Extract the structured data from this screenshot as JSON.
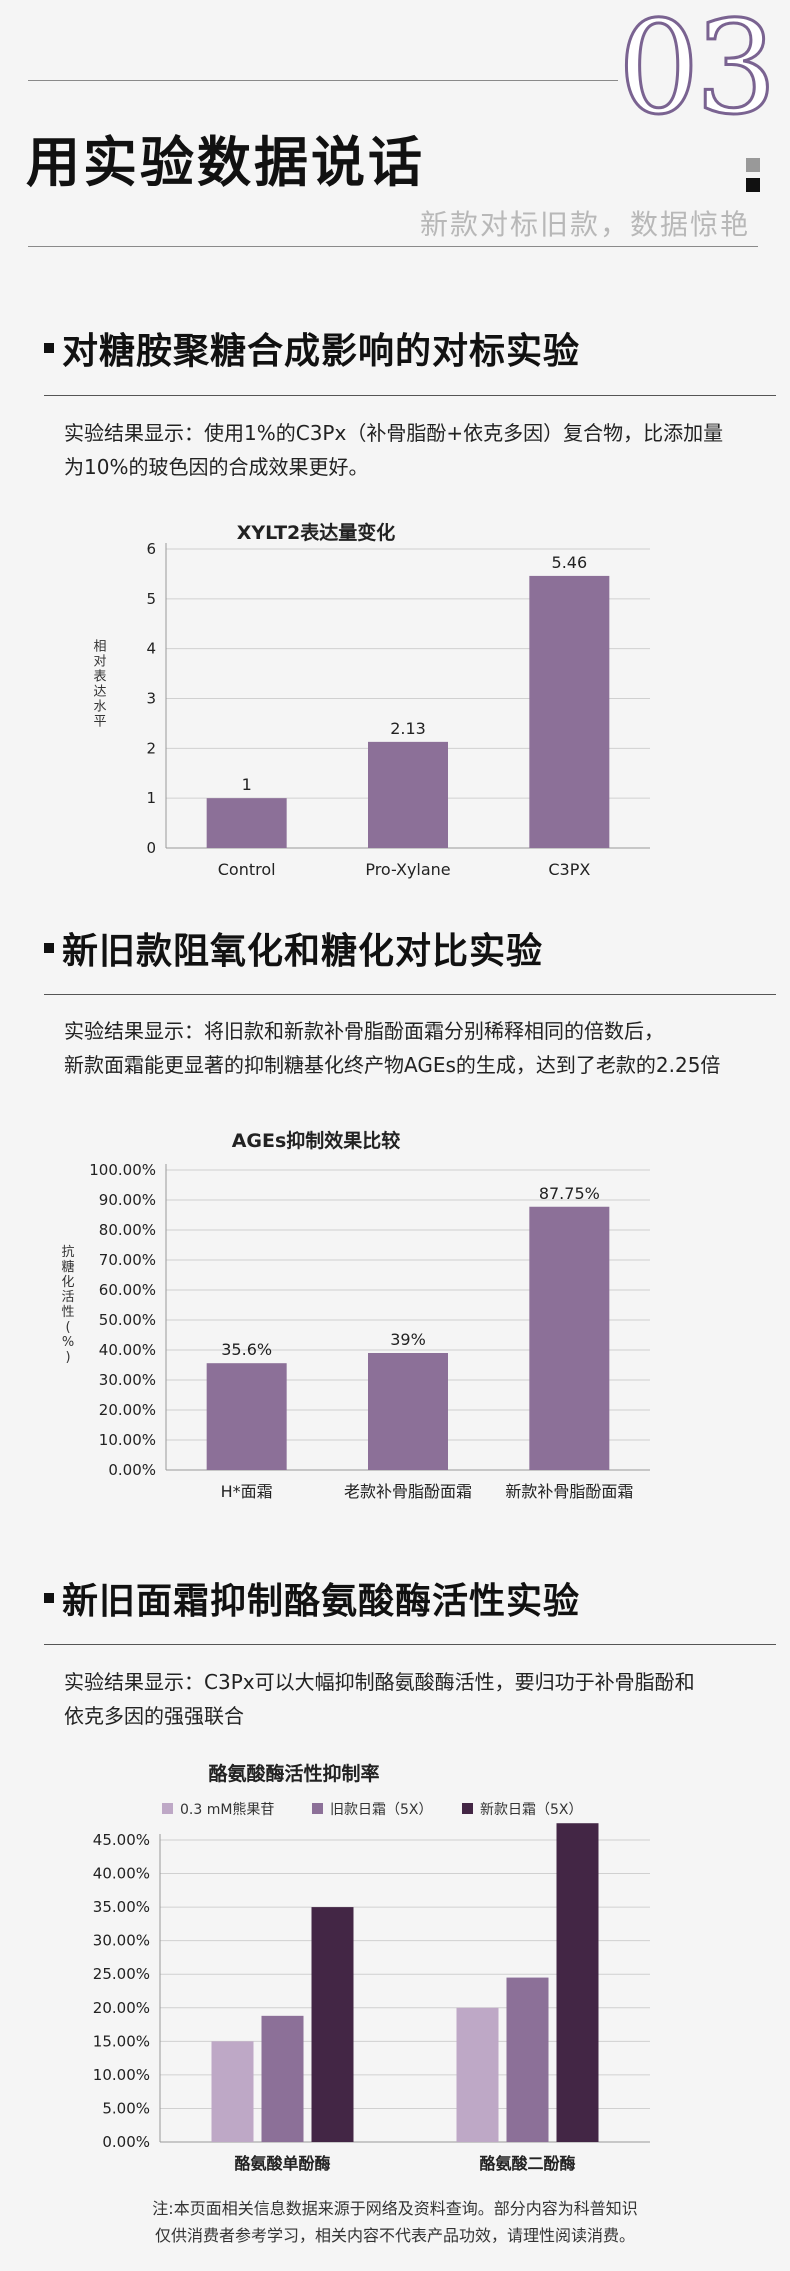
{
  "header": {
    "number": "03",
    "title": "用实验数据说话",
    "subtitle": "新款对标旧款，数据惊艳"
  },
  "sections": [
    {
      "title": "对糖胺聚糖合成影响的对标实验",
      "desc_lines": [
        "实验结果显示：使用1%的C3Px（补骨脂酚+依克多因）复合物，比添加量",
        "为10%的玻色因的合成效果更好。"
      ]
    },
    {
      "title": "新旧款阻氧化和糖化对比实验",
      "desc_lines": [
        "实验结果显示：将旧款和新款补骨脂酚面霜分别稀释相同的倍数后，",
        "新款面霜能更显著的抑制糖基化终产物AGEs的生成，达到了老款的2.25倍"
      ]
    },
    {
      "title": "新旧面霜抑制酪氨酸酶活性实验",
      "desc_lines": [
        "实验结果显示：C3Px可以大幅抑制酪氨酸酶活性，要归功于补骨脂酚和",
        "依克多因的强强联合"
      ]
    }
  ],
  "chart_data": [
    {
      "type": "bar",
      "title": "XYLT2表达量变化",
      "ylabel": "相对表达水平",
      "categories": [
        "Control",
        "Pro-Xylane",
        "C3PX"
      ],
      "values": [
        1,
        2.13,
        5.46
      ],
      "value_labels": [
        "1",
        "2.13",
        "5.46"
      ],
      "ylim": [
        0,
        6
      ],
      "yticks": [
        "0",
        "1",
        "2",
        "3",
        "4",
        "5",
        "6"
      ],
      "grid": true,
      "color": "#8c7098"
    },
    {
      "type": "bar",
      "title": "AGEs抑制效果比较",
      "ylabel": "抗糖化活性(%)",
      "categories": [
        "H*面霜",
        "老款补骨脂酚面霜",
        "新款补骨脂酚面霜"
      ],
      "values": [
        35.6,
        39,
        87.75
      ],
      "value_labels": [
        "35.6%",
        "39%",
        "87.75%"
      ],
      "ylim": [
        0,
        100
      ],
      "yticks": [
        "0.00%",
        "10.00%",
        "20.00%",
        "30.00%",
        "40.00%",
        "50.00%",
        "60.00%",
        "70.00%",
        "80.00%",
        "90.00%",
        "100.00%"
      ],
      "grid": true,
      "color": "#8c7098"
    },
    {
      "type": "bar",
      "title": "酪氨酸酶活性抑制率",
      "categories": [
        "酪氨酸单酚酶",
        "酪氨酸二酚酶"
      ],
      "series": [
        {
          "name": "0.3 mM熊果苷",
          "values": [
            15,
            20
          ],
          "color": "#bea8c6"
        },
        {
          "name": "旧款日霜（5X）",
          "values": [
            18.8,
            24.5
          ],
          "color": "#8c7098"
        },
        {
          "name": "新款日霜（5X）",
          "values": [
            35,
            47.5
          ],
          "color": "#432645"
        }
      ],
      "ylim": [
        0,
        45
      ],
      "yticks": [
        "0.00%",
        "5.00%",
        "10.00%",
        "15.00%",
        "20.00%",
        "25.00%",
        "30.00%",
        "35.00%",
        "40.00%",
        "45.00%"
      ],
      "grid": true,
      "legend": "top"
    }
  ],
  "footer": {
    "line1": "注:本页面相关信息数据来源于网络及资料查询。部分内容为科普知识",
    "line2": "仅供消费者参考学习，相关内容不代表产品功效，请理性阅读消费。"
  }
}
